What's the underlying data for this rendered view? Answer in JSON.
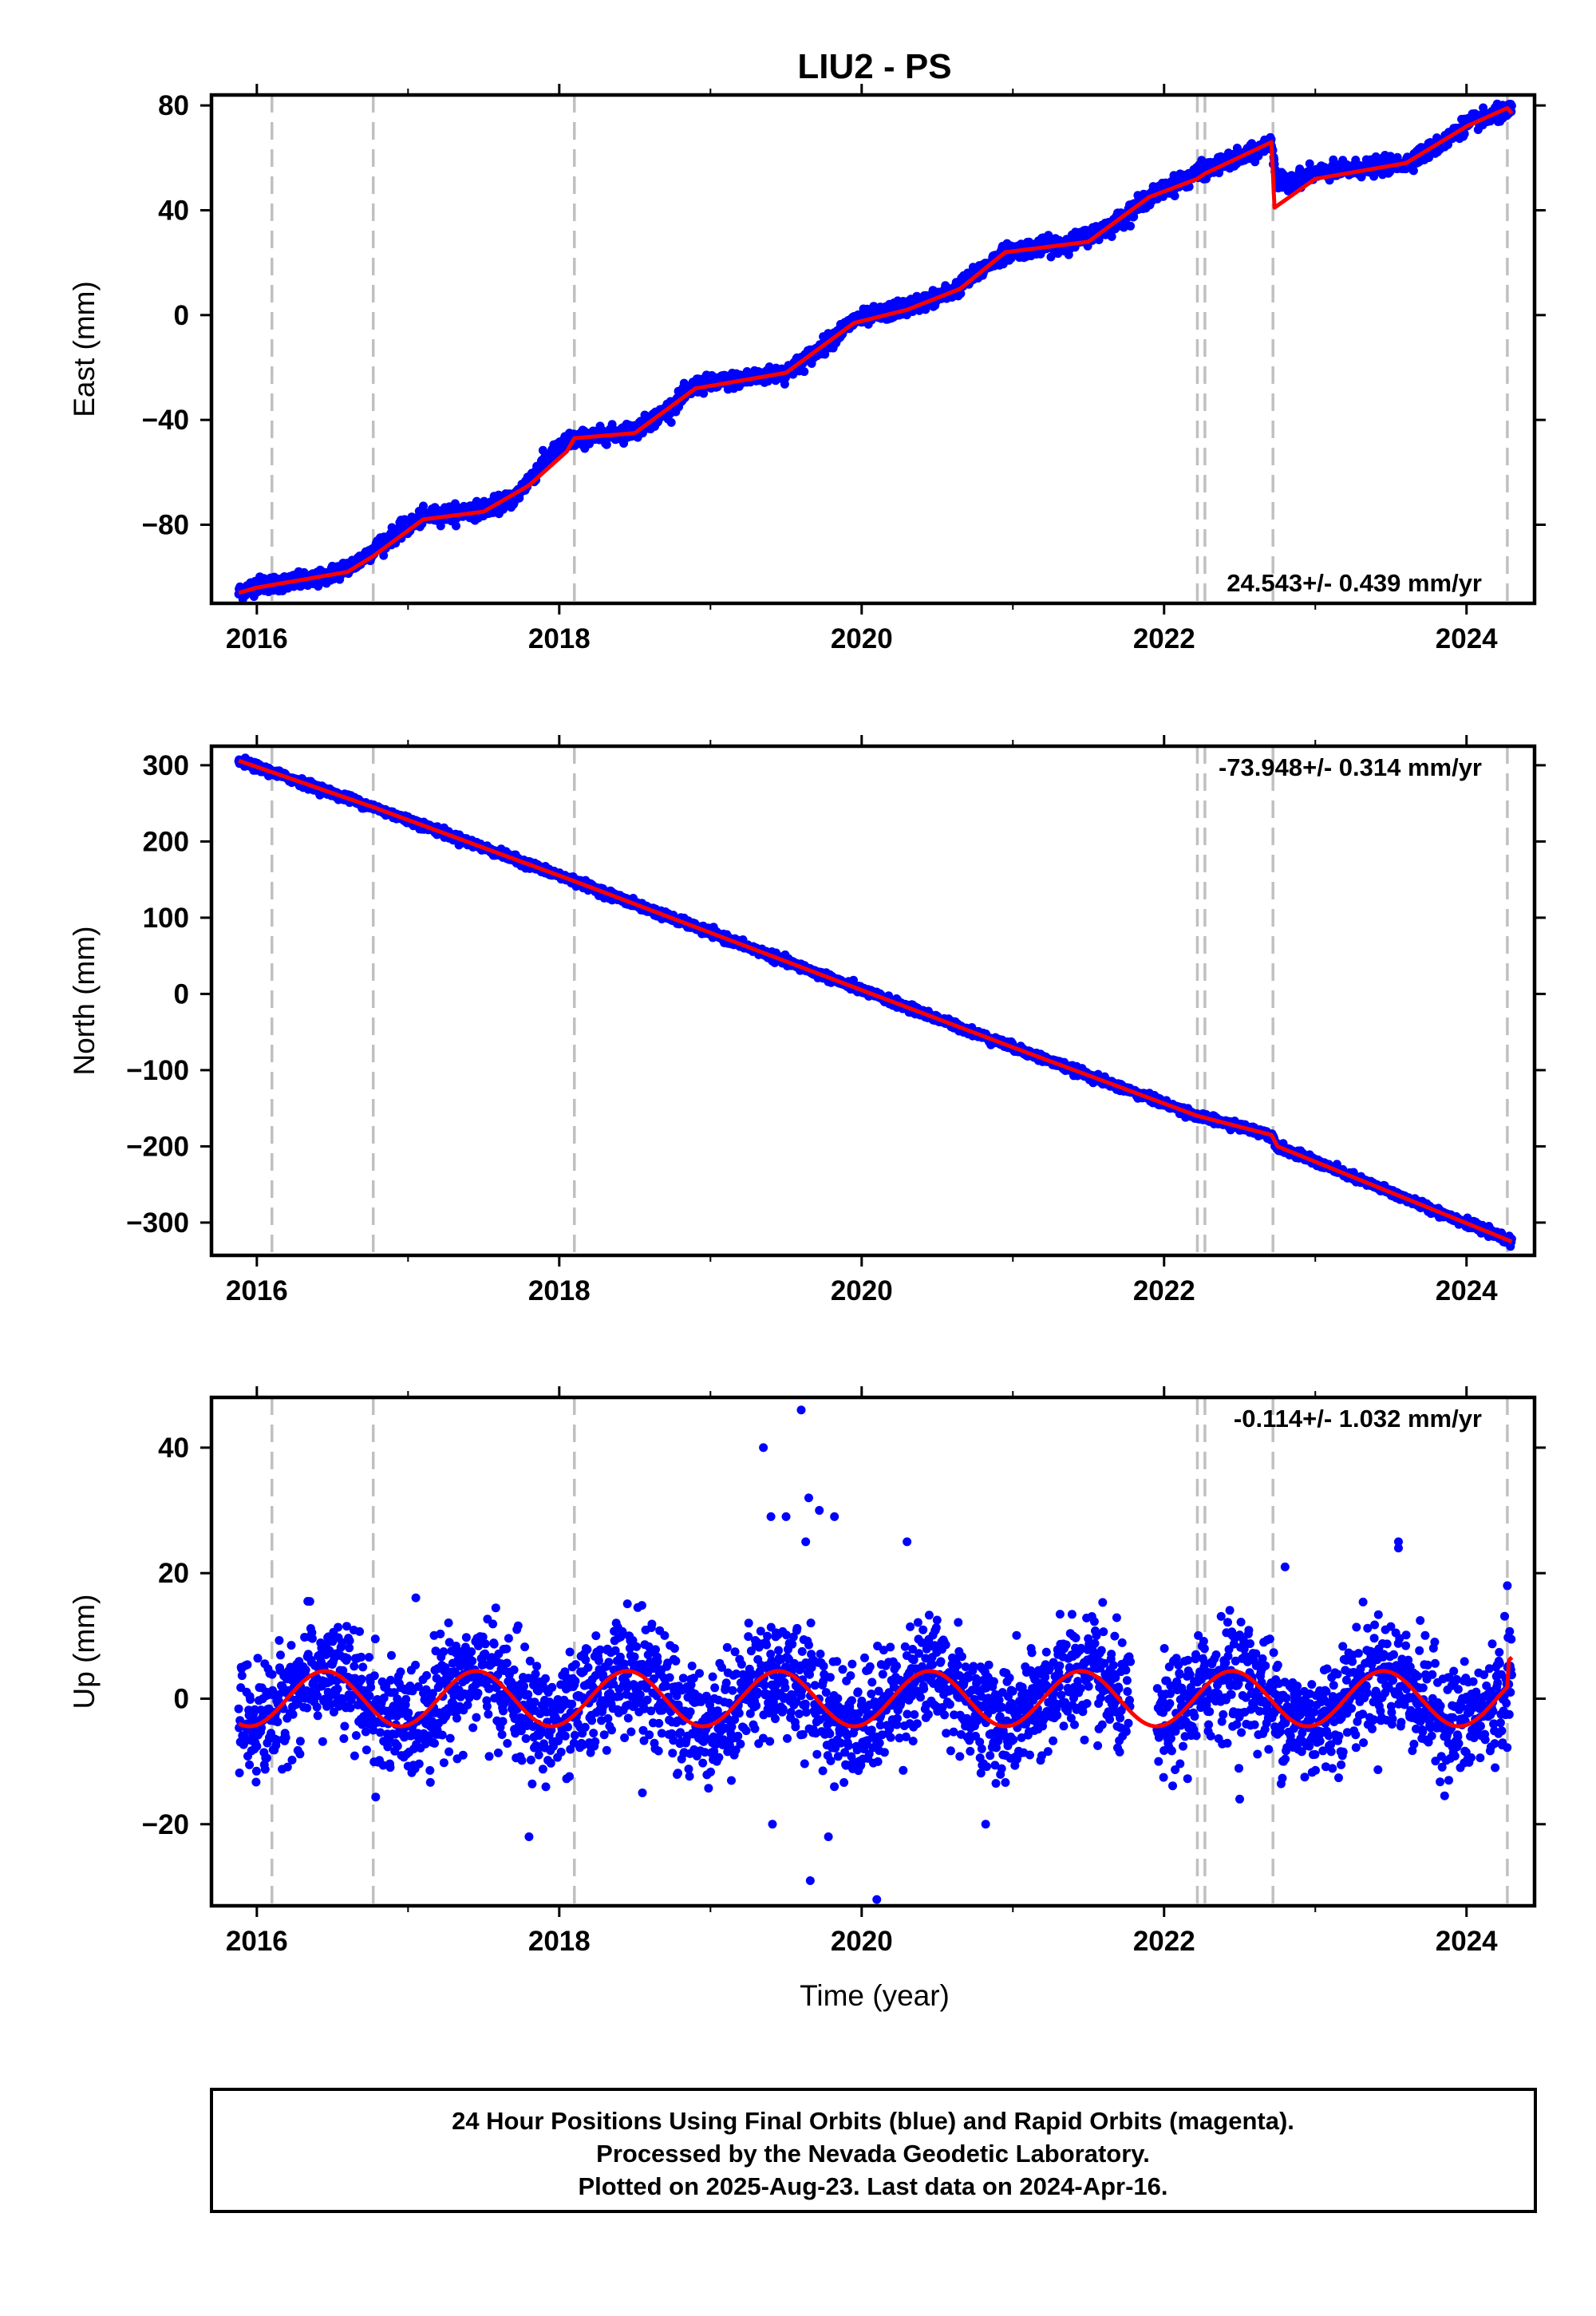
{
  "chart_data": [
    {
      "type": "scatter",
      "title": "LIU2 - PS",
      "ylabel": "East (mm)",
      "xlabel": "",
      "xlim": [
        2015.7,
        2024.45
      ],
      "ylim": [
        -110,
        84
      ],
      "xticks": [
        2016,
        2018,
        2020,
        2022,
        2024
      ],
      "yticks": [
        -80,
        -40,
        0,
        40,
        80
      ],
      "ytick_labels": [
        "−80",
        "−40",
        "0",
        "40",
        "80"
      ],
      "rate_text": "24.543+/- 0.439 mm/yr",
      "rate_position": "bottom-right",
      "vertical_lines": [
        2016.1,
        2016.77,
        2018.1,
        2022.22,
        2022.27,
        2022.72,
        2024.27
      ],
      "grid": false,
      "series": [
        {
          "color": "#0000ff",
          "marker": "dot",
          "data_extent": [
            2015.88,
            2024.3
          ],
          "nodes": [
            [
              2015.88,
              -106
            ],
            [
              2016.0,
              -103
            ],
            [
              2016.4,
              -101
            ],
            [
              2016.65,
              -95
            ],
            [
              2016.85,
              -86
            ],
            [
              2017.1,
              -77
            ],
            [
              2017.5,
              -74
            ],
            [
              2017.7,
              -70
            ],
            [
              2017.9,
              -56
            ],
            [
              2018.05,
              -48
            ],
            [
              2018.5,
              -44
            ],
            [
              2018.7,
              -37
            ],
            [
              2018.9,
              -27
            ],
            [
              2019.5,
              -22
            ],
            [
              2019.7,
              -14
            ],
            [
              2019.95,
              -2
            ],
            [
              2020.3,
              3
            ],
            [
              2020.6,
              9
            ],
            [
              2020.95,
              24
            ],
            [
              2021.4,
              28
            ],
            [
              2021.65,
              34
            ],
            [
              2021.9,
              45
            ],
            [
              2022.25,
              55
            ],
            [
              2022.6,
              62
            ],
            [
              2022.71,
              66
            ],
            [
              2022.75,
              50
            ],
            [
              2023.0,
              54
            ],
            [
              2023.6,
              58
            ],
            [
              2023.85,
              66
            ],
            [
              2024.0,
              73
            ],
            [
              2024.3,
              78
            ]
          ],
          "noise_mm": 1.5
        },
        {
          "color": "#ff0000",
          "style": "line",
          "nodes": [
            [
              2015.88,
              -106
            ],
            [
              2016.0,
              -104
            ],
            [
              2016.1,
              -103
            ],
            [
              2016.6,
              -98
            ],
            [
              2016.77,
              -92
            ],
            [
              2017.1,
              -78
            ],
            [
              2017.5,
              -75
            ],
            [
              2017.8,
              -65
            ],
            [
              2018.05,
              -52
            ],
            [
              2018.1,
              -47
            ],
            [
              2018.5,
              -45
            ],
            [
              2018.9,
              -28
            ],
            [
              2019.5,
              -22
            ],
            [
              2019.95,
              -3
            ],
            [
              2020.3,
              2
            ],
            [
              2020.65,
              10
            ],
            [
              2020.95,
              24
            ],
            [
              2021.5,
              28
            ],
            [
              2021.9,
              45
            ],
            [
              2022.22,
              52
            ],
            [
              2022.27,
              54
            ],
            [
              2022.71,
              66
            ],
            [
              2022.73,
              41
            ],
            [
              2023.0,
              52
            ],
            [
              2023.6,
              58
            ],
            [
              2024.0,
              72
            ],
            [
              2024.27,
              79
            ],
            [
              2024.3,
              77
            ]
          ]
        }
      ]
    },
    {
      "type": "scatter",
      "ylabel": "North (mm)",
      "xlabel": "",
      "xlim": [
        2015.7,
        2024.45
      ],
      "ylim": [
        -343,
        325
      ],
      "xticks": [
        2016,
        2018,
        2020,
        2022,
        2024
      ],
      "yticks": [
        -300,
        -200,
        -100,
        0,
        100,
        200,
        300
      ],
      "ytick_labels": [
        "−300",
        "−200",
        "−100",
        "0",
        "100",
        "200",
        "300"
      ],
      "rate_text": "-73.948+/- 0.314 mm/yr",
      "rate_position": "top-right",
      "vertical_lines": [
        2016.1,
        2016.77,
        2018.1,
        2022.22,
        2022.27,
        2022.72,
        2024.27
      ],
      "grid": false,
      "series": [
        {
          "color": "#0000ff",
          "marker": "dot",
          "data_extent": [
            2015.88,
            2024.3
          ],
          "nodes": [
            [
              2015.88,
              306
            ],
            [
              2016.77,
              245
            ],
            [
              2018.1,
              148
            ],
            [
              2020.0,
              5
            ],
            [
              2021.0,
              -70
            ],
            [
              2022.22,
              -160
            ],
            [
              2022.71,
              -185
            ],
            [
              2022.75,
              -200
            ],
            [
              2024.3,
              -325
            ]
          ],
          "noise_mm": 2.5
        },
        {
          "color": "#ff0000",
          "style": "line",
          "nodes": [
            [
              2015.88,
              306
            ],
            [
              2016.77,
              245
            ],
            [
              2018.1,
              148
            ],
            [
              2020.0,
              5
            ],
            [
              2021.0,
              -70
            ],
            [
              2022.22,
              -160
            ],
            [
              2022.71,
              -185
            ],
            [
              2022.75,
              -200
            ],
            [
              2024.3,
              -325
            ]
          ]
        }
      ]
    },
    {
      "type": "scatter",
      "ylabel": "Up (mm)",
      "xlabel": "Time (year)",
      "xlim": [
        2015.7,
        2024.45
      ],
      "ylim": [
        -33,
        48
      ],
      "xticks": [
        2016,
        2018,
        2020,
        2022,
        2024
      ],
      "yticks": [
        -20,
        0,
        20,
        40
      ],
      "ytick_labels": [
        "−20",
        "0",
        "20",
        "40"
      ],
      "rate_text": "-0.114+/- 1.032 mm/yr",
      "rate_position": "top-right",
      "vertical_lines": [
        2016.1,
        2016.77,
        2018.1,
        2022.22,
        2022.27,
        2022.72,
        2024.27
      ],
      "grid": false,
      "series": [
        {
          "color": "#0000ff",
          "marker": "dot",
          "data_extent": [
            2015.88,
            2024.3
          ],
          "gaps": [
            [
              2021.78,
              2021.95
            ]
          ],
          "seasonal_amplitude_mm": 4,
          "noise_mm": 4.5,
          "outliers": [
            [
              2019.35,
              40
            ],
            [
              2019.6,
              46
            ],
            [
              2019.4,
              29
            ],
            [
              2019.5,
              29
            ],
            [
              2019.65,
              32
            ],
            [
              2019.72,
              30
            ],
            [
              2019.82,
              29
            ],
            [
              2019.63,
              25
            ],
            [
              2020.1,
              -32
            ],
            [
              2019.66,
              -29
            ],
            [
              2019.78,
              -22
            ],
            [
              2019.41,
              -20
            ],
            [
              2017.8,
              -22
            ],
            [
              2023.55,
              25
            ],
            [
              2023.55,
              24
            ],
            [
              2024.27,
              18
            ],
            [
              2022.8,
              21
            ],
            [
              2022.5,
              -16
            ],
            [
              2018.55,
              -15
            ],
            [
              2020.82,
              -20
            ],
            [
              2020.3,
              25
            ]
          ]
        },
        {
          "color": "#ff0000",
          "style": "seasonal-line",
          "amplitude_mm": 4.4,
          "peak_phase_year": 0.45,
          "offset_mm": 0,
          "end_jump_mm": 4,
          "data_extent": [
            2015.88,
            2024.3
          ]
        }
      ]
    }
  ],
  "footer_lines": [
    "24 Hour Positions Using Final Orbits (blue) and Rapid Orbits (magenta).",
    "Processed by the Nevada Geodetic Laboratory.",
    "Plotted on 2025-Aug-23. Last data on 2024-Apr-16."
  ]
}
